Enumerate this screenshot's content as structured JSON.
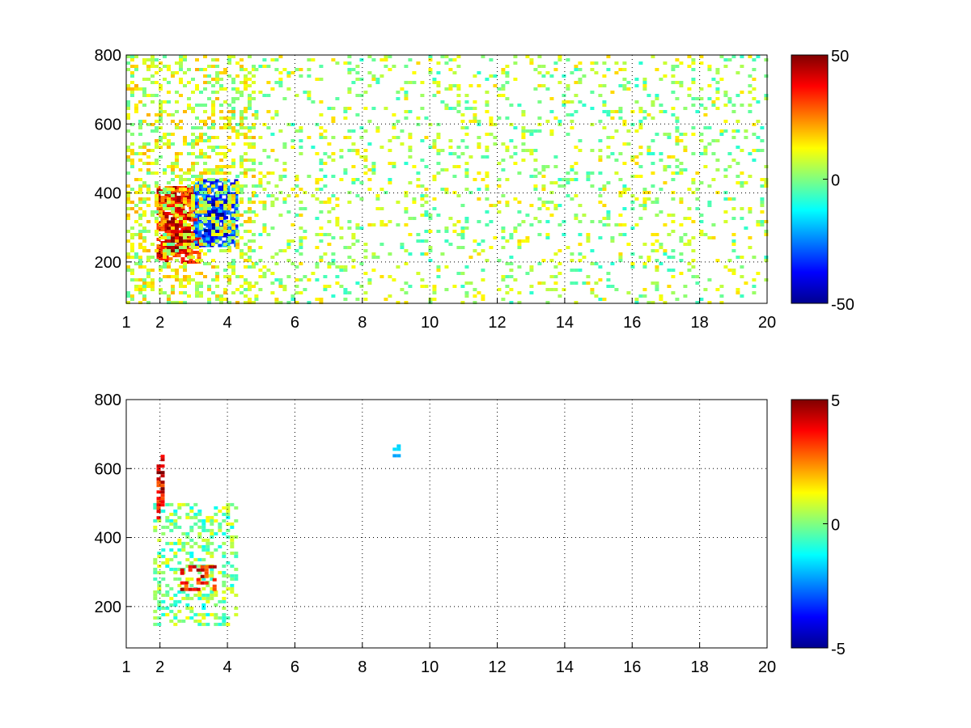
{
  "chart_data": [
    {
      "type": "heatmap",
      "title": "",
      "xlabel": "",
      "ylabel": "",
      "xlim": [
        1,
        20
      ],
      "ylim": [
        80,
        800
      ],
      "xticks": [
        1,
        2,
        4,
        6,
        8,
        10,
        12,
        14,
        16,
        18,
        20
      ],
      "xtick_labels": [
        "1",
        "2",
        "4",
        "6",
        "8",
        "10",
        "12",
        "14",
        "16",
        "18",
        "20"
      ],
      "yticks": [
        200,
        400,
        600,
        800
      ],
      "ytick_labels": [
        "200",
        "400",
        "600",
        "800"
      ],
      "grid": true,
      "colormap": "jet",
      "clim": [
        -50,
        50
      ],
      "colorbar_ticks": [
        -50,
        0,
        50
      ],
      "colorbar_labels": [
        "-50",
        "0",
        "50"
      ],
      "regions": [
        {
          "x": [
            1.9,
            3.2
          ],
          "y": [
            200,
            420
          ],
          "value": 35
        },
        {
          "x": [
            2.2,
            2.9
          ],
          "y": [
            230,
            330
          ],
          "value": 45
        },
        {
          "x": [
            3.0,
            4.2
          ],
          "y": [
            250,
            440
          ],
          "value": -30
        },
        {
          "x": [
            3.3,
            3.9
          ],
          "y": [
            280,
            380
          ],
          "value": -40
        },
        {
          "x": [
            1.0,
            4.8
          ],
          "y": [
            80,
            800
          ],
          "value": 8
        },
        {
          "x": [
            4.8,
            20.0
          ],
          "y": [
            80,
            800
          ],
          "value": 4
        }
      ]
    },
    {
      "type": "heatmap",
      "title": "",
      "xlabel": "",
      "ylabel": "",
      "xlim": [
        1,
        20
      ],
      "ylim": [
        80,
        800
      ],
      "xticks": [
        1,
        2,
        4,
        6,
        8,
        10,
        12,
        14,
        16,
        18,
        20
      ],
      "xtick_labels": [
        "1",
        "2",
        "4",
        "6",
        "8",
        "10",
        "12",
        "14",
        "16",
        "18",
        "20"
      ],
      "yticks": [
        200,
        400,
        600,
        800
      ],
      "ytick_labels": [
        "200",
        "400",
        "600",
        "800"
      ],
      "grid": true,
      "colormap": "jet",
      "clim": [
        -5,
        5
      ],
      "colorbar_ticks": [
        -5,
        0,
        5
      ],
      "colorbar_labels": [
        "-5",
        "0",
        "5"
      ],
      "regions": [
        {
          "x": [
            1.8,
            4.2
          ],
          "y": [
            150,
            500
          ],
          "value": 0
        },
        {
          "x": [
            2.6,
            3.6
          ],
          "y": [
            250,
            320
          ],
          "value": 3.5
        },
        {
          "x": [
            1.9,
            2.1
          ],
          "y": [
            450,
            640
          ],
          "value": 4
        },
        {
          "x": [
            8.9,
            9.1
          ],
          "y": [
            640,
            670
          ],
          "value": -2
        }
      ]
    }
  ]
}
